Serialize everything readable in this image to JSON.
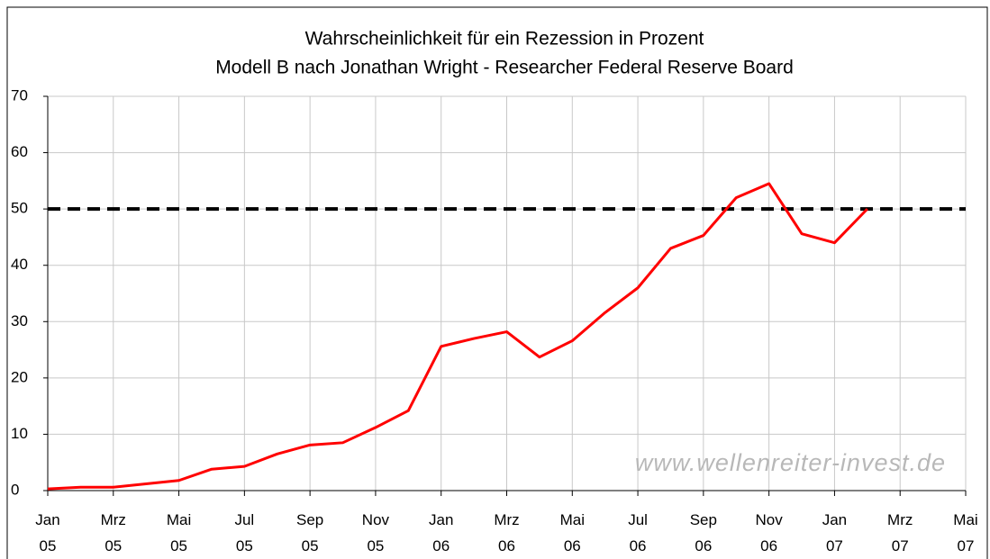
{
  "chart_data": {
    "type": "line",
    "title": "Wahrscheinlichkeit für ein Rezession in Prozent",
    "subtitle": "Modell B nach Jonathan Wright - Researcher Federal Reserve Board",
    "categories": [
      "Jan 05",
      null,
      "Mrz 05",
      null,
      "Mai 05",
      null,
      "Jul 05",
      null,
      "Sep 05",
      null,
      "Nov 05",
      null,
      "Jan 06",
      null,
      "Mrz 06",
      null,
      "Mai 06",
      null,
      "Jul 06",
      null,
      "Sep 06",
      null,
      "Nov 06",
      null,
      "Jan 07",
      null,
      "Mrz 07",
      null,
      "Mai 07"
    ],
    "series": [
      {
        "color": "#ff0000",
        "values": [
          0.3,
          0.6,
          0.6,
          1.2,
          1.8,
          3.8,
          4.3,
          6.5,
          8.1,
          8.5,
          11.2,
          14.2,
          25.6,
          27,
          28.2,
          23.7,
          26.6,
          31.6,
          36,
          43,
          45.3,
          52,
          54.5,
          45.6,
          44,
          50,
          null,
          null,
          null
        ]
      }
    ],
    "reference_line": {
      "value": 50,
      "color": "#000000"
    },
    "annotation": "www.wellenreiter-invest.de",
    "ylim": [
      0,
      70
    ],
    "yticks": [
      0,
      10,
      20,
      30,
      40,
      50,
      60,
      70
    ],
    "grid": true
  }
}
